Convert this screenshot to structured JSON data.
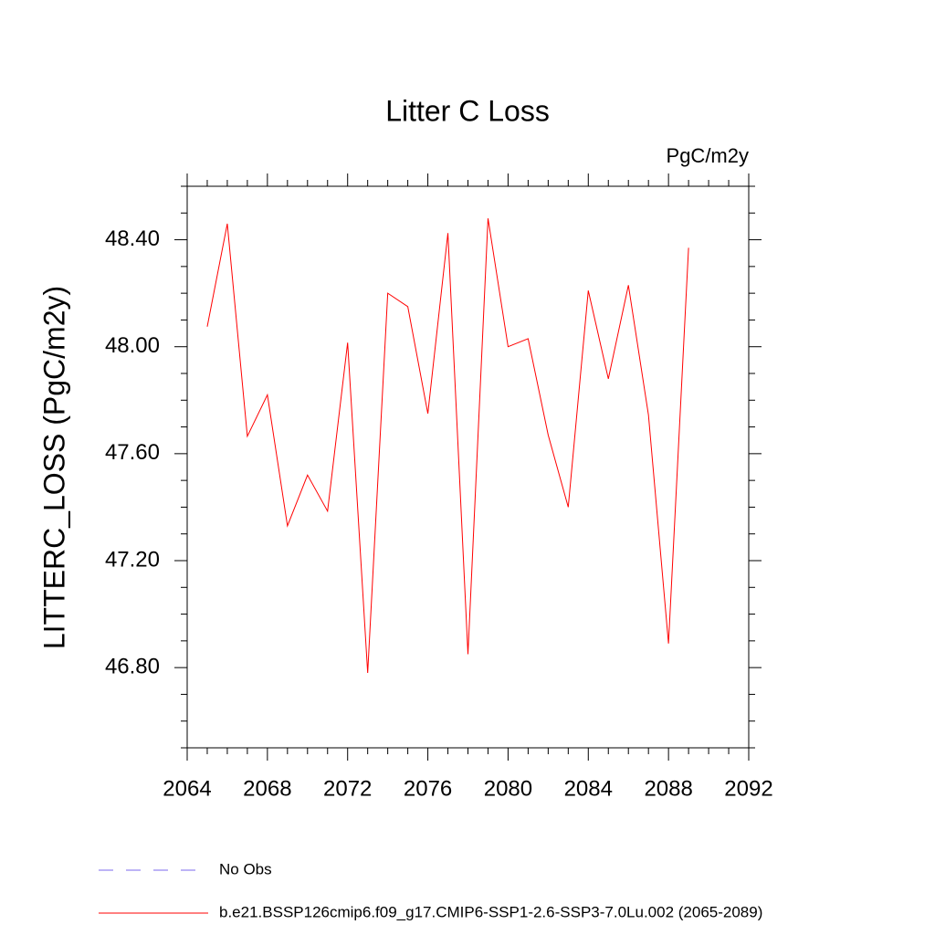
{
  "chart_data": {
    "type": "line",
    "title": "Litter C Loss",
    "units": "PgC/m2y",
    "y_label": "LITTERC_LOSS  (PgC/m2y)",
    "x": [
      2065,
      2066,
      2067,
      2068,
      2069,
      2070,
      2071,
      2072,
      2073,
      2074,
      2075,
      2076,
      2077,
      2078,
      2079,
      2080,
      2081,
      2082,
      2083,
      2084,
      2085,
      2086,
      2087,
      2088,
      2089
    ],
    "series": [
      {
        "name": "No Obs",
        "color": "#7b68ee",
        "line_style": "dashed",
        "values": [
          null,
          null,
          null,
          null,
          null,
          null,
          null,
          null,
          null,
          null,
          null,
          null,
          null,
          null,
          null,
          null,
          null,
          null,
          null,
          null,
          null,
          null,
          null,
          null,
          null
        ]
      },
      {
        "name": "b.e21.BSSP126cmip6.f09_g17.CMIP6-SSP1-2.6-SSP3-7.0Lu.002 (2065-2089)",
        "color": "#ff0000",
        "line_style": "solid",
        "values": [
          48.075,
          48.46,
          47.665,
          47.82,
          47.33,
          47.52,
          47.385,
          48.015,
          46.78,
          48.2,
          48.15,
          47.75,
          48.425,
          46.85,
          48.48,
          48.0,
          48.03,
          47.67,
          47.4,
          48.21,
          47.88,
          48.23,
          47.745,
          46.89,
          48.37
        ]
      }
    ],
    "xlim": [
      2064,
      2092
    ],
    "xticks": [
      2064,
      2068,
      2072,
      2076,
      2080,
      2084,
      2088,
      2092
    ],
    "ylim": [
      46.5,
      48.6
    ],
    "yticks": [
      {
        "value": 46.8,
        "label": "46.80"
      },
      {
        "value": 47.2,
        "label": "47.20"
      },
      {
        "value": 47.6,
        "label": "47.60"
      },
      {
        "value": 48.0,
        "label": "48.00"
      },
      {
        "value": 48.4,
        "label": "48.40"
      }
    ],
    "grid": false
  }
}
